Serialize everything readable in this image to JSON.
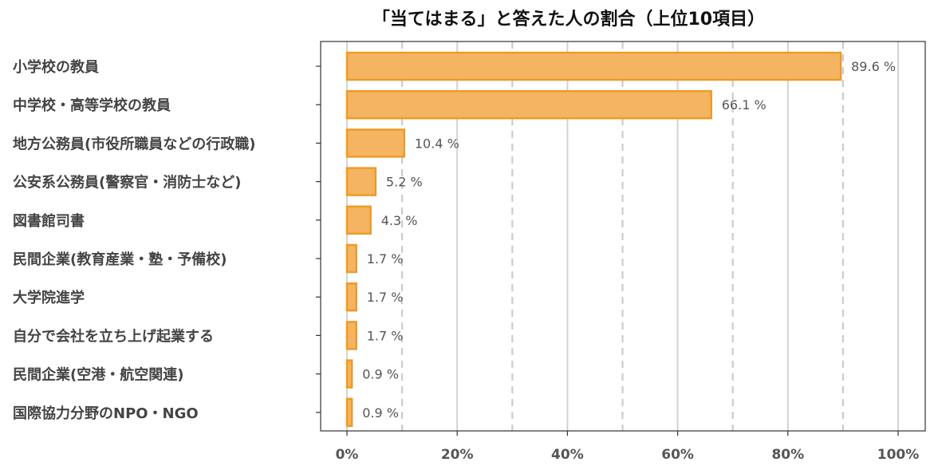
{
  "chart_data": {
    "type": "bar",
    "orientation": "horizontal",
    "title": "「当てはまる」と答えた人の割合（上位10項目）",
    "xlabel": "",
    "ylabel": "",
    "xlim": [
      0,
      100
    ],
    "x_ticks": [
      "0%",
      "20%",
      "40%",
      "60%",
      "80%",
      "100%"
    ],
    "x_tick_values": [
      0,
      20,
      40,
      60,
      80,
      100
    ],
    "minor_gridlines": [
      10,
      30,
      50,
      70,
      90
    ],
    "grid": true,
    "bar_color": "#F5B461",
    "bar_edge_color": "#EE9A22",
    "categories": [
      "小学校の教員",
      "中学校・高等学校の教員",
      "地方公務員(市役所職員などの行政職)",
      "公安系公務員(警察官・消防士など)",
      "図書館司書",
      "民間企業(教育産業・塾・予備校)",
      "大学院進学",
      "自分で会社を立ち上げ起業する",
      "民間企業(空港・航空関連)",
      "国際協力分野のNPO・NGO"
    ],
    "values": [
      89.6,
      66.1,
      10.4,
      5.2,
      4.3,
      1.7,
      1.7,
      1.7,
      0.9,
      0.9
    ],
    "data_labels": [
      "89.6 %",
      "66.1 %",
      "10.4 %",
      "5.2 %",
      "4.3 %",
      "1.7 %",
      "1.7 %",
      "1.7 %",
      "0.9 %",
      "0.9 %"
    ]
  }
}
